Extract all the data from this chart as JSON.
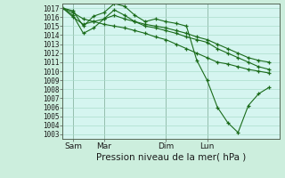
{
  "bg_color": "#cceedd",
  "plot_bg_color": "#d5f5f0",
  "grid_color": "#aaddcc",
  "line_color": "#1a6b1a",
  "marker_color": "#1a6b1a",
  "xlabel": "Pression niveau de la mer( hPa )",
  "ylim": [
    1002.5,
    1017.5
  ],
  "yticks": [
    1003,
    1004,
    1005,
    1006,
    1007,
    1008,
    1009,
    1010,
    1011,
    1012,
    1013,
    1014,
    1015,
    1016,
    1017
  ],
  "xtick_labels": [
    "Sam",
    "Mar",
    "Dim",
    "Lun"
  ],
  "xtick_positions": [
    1,
    4,
    10,
    14
  ],
  "series": [
    [
      1017.0,
      1016.7,
      1015.0,
      1016.1,
      1016.5,
      1017.5,
      1017.2,
      1016.2,
      1015.5,
      1015.8,
      1015.5,
      1015.3,
      1015.0,
      1011.2,
      1009.0,
      1006.0,
      1004.3,
      1003.2,
      1006.2,
      1007.5,
      1008.2
    ],
    [
      1017.0,
      1016.2,
      1014.2,
      1014.8,
      1015.8,
      1016.8,
      1016.2,
      1015.5,
      1015.0,
      1014.8,
      1014.5,
      1014.2,
      1013.8,
      1013.5,
      1013.2,
      1012.5,
      1012.0,
      1011.5,
      1011.0,
      1010.5,
      1010.2
    ],
    [
      1017.0,
      1016.0,
      1015.2,
      1015.5,
      1015.8,
      1016.2,
      1015.8,
      1015.5,
      1015.2,
      1015.0,
      1014.8,
      1014.5,
      1014.2,
      1013.8,
      1013.5,
      1013.0,
      1012.5,
      1012.0,
      1011.5,
      1011.2,
      1011.0
    ],
    [
      1017.0,
      1016.5,
      1015.8,
      1015.5,
      1015.2,
      1015.0,
      1014.8,
      1014.5,
      1014.2,
      1013.8,
      1013.5,
      1013.0,
      1012.5,
      1012.0,
      1011.5,
      1011.0,
      1010.8,
      1010.5,
      1010.2,
      1010.0,
      1009.8
    ]
  ],
  "xlim": [
    0,
    21
  ],
  "xlabel_fontsize": 7.5,
  "ytick_fontsize": 5.5,
  "xtick_fontsize": 6.5
}
